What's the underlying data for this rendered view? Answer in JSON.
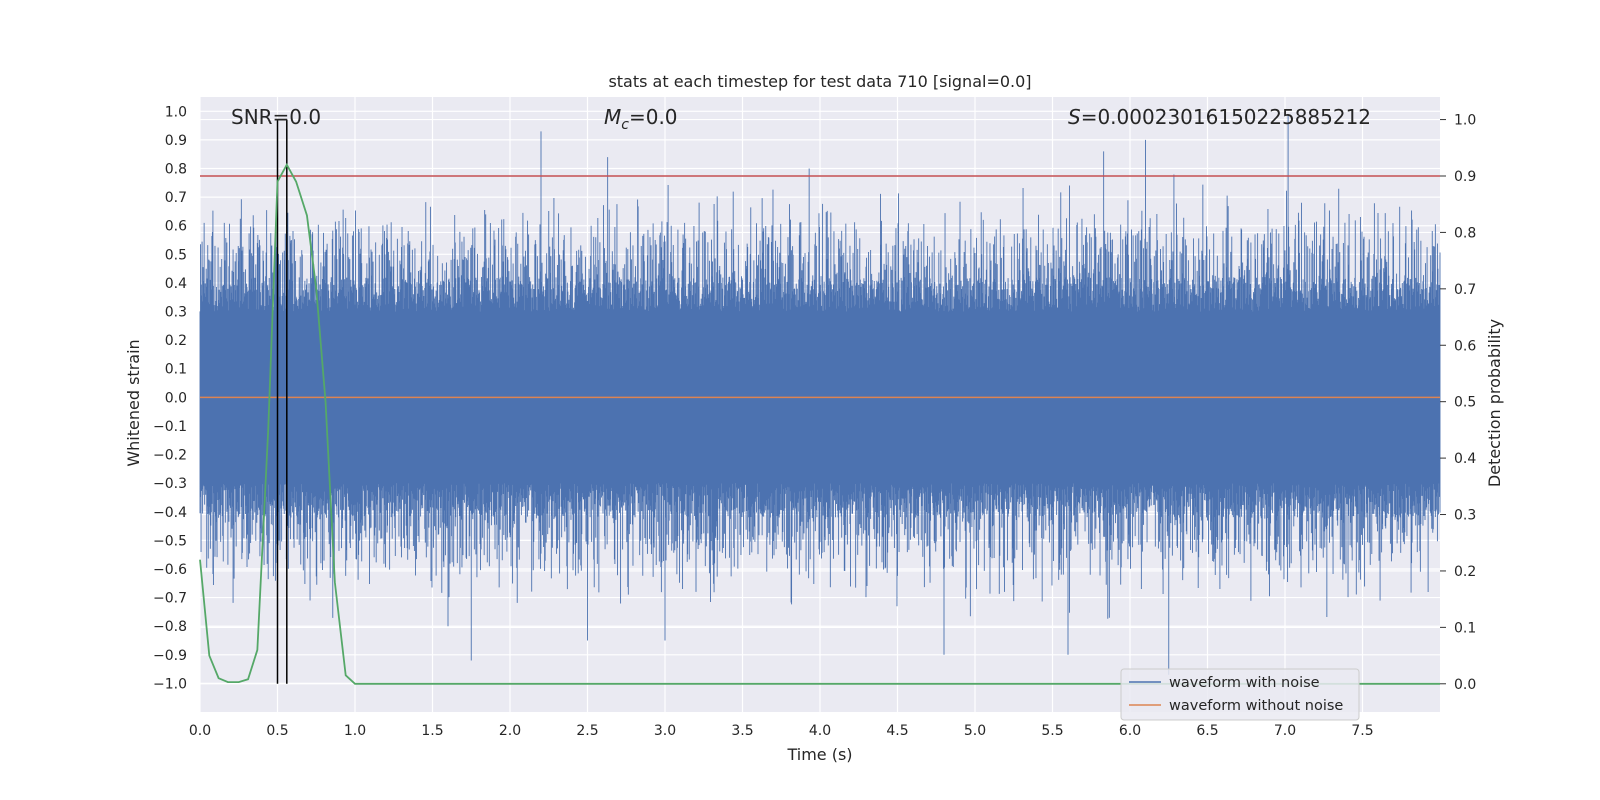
{
  "chart_data": {
    "type": "line",
    "title": "stats at each timestep for test data 710 [signal=0.0]",
    "xlabel": "Time (s)",
    "ylabel_left": "Whitened strain",
    "ylabel_right": "Detection probability",
    "xlim": [
      0.0,
      8.0
    ],
    "ylim_left": [
      -1.1,
      1.05
    ],
    "ylim_right": [
      -0.05,
      1.04
    ],
    "x_ticks": [
      "0.0",
      "0.5",
      "1.0",
      "1.5",
      "2.0",
      "2.5",
      "3.0",
      "3.5",
      "4.0",
      "4.5",
      "5.0",
      "5.5",
      "6.0",
      "6.5",
      "7.0",
      "7.5"
    ],
    "y_left_ticks": [
      "1.0",
      "0.9",
      "0.8",
      "0.7",
      "0.6",
      "0.5",
      "0.4",
      "0.3",
      "0.2",
      "0.1",
      "0.0",
      "−0.1",
      "−0.2",
      "−0.3",
      "−0.4",
      "−0.5",
      "−0.6",
      "−0.7",
      "−0.8",
      "−0.9",
      "−1.0"
    ],
    "y_right_ticks": [
      "1.0",
      "0.9",
      "0.8",
      "0.7",
      "0.6",
      "0.5",
      "0.4",
      "0.3",
      "0.2",
      "0.1",
      "0.0"
    ],
    "annotations": {
      "snr_label": "SNR=0.0",
      "mc_label": "=0.0",
      "mc_symbol": "M",
      "mc_subscript": "c",
      "s_symbol": "S",
      "s_label": "=0.00023016150225885212"
    },
    "threshold_probability": 0.9,
    "vertical_lines_time": [
      0.5,
      0.56
    ],
    "legend": [
      "waveform with noise",
      "waveform without noise"
    ],
    "series": [
      {
        "name": "waveform with noise",
        "color": "#4c72b0",
        "description": "whitened noise strain, 8 s at high sample rate",
        "notable_peaks": [
          {
            "t": 2.2,
            "v": 0.93
          },
          {
            "t": 2.63,
            "v": 0.84
          },
          {
            "t": 3.93,
            "v": 0.8
          },
          {
            "t": 5.83,
            "v": 0.86
          },
          {
            "t": 6.1,
            "v": 0.9
          },
          {
            "t": 7.02,
            "v": 0.99
          },
          {
            "t": 1.75,
            "v": -0.92
          },
          {
            "t": 5.6,
            "v": -0.9
          },
          {
            "t": 6.25,
            "v": -0.97
          },
          {
            "t": 4.8,
            "v": -0.9
          },
          {
            "t": 3.0,
            "v": -0.85
          },
          {
            "t": 2.5,
            "v": -0.85
          }
        ]
      },
      {
        "name": "waveform without noise",
        "color": "#dd8452",
        "values_constant": 0.0
      },
      {
        "name": "detection probability",
        "color": "#55a868",
        "x": [
          0.0,
          0.06,
          0.12,
          0.18,
          0.25,
          0.31,
          0.37,
          0.44,
          0.5,
          0.56,
          0.62,
          0.69,
          0.75,
          0.81,
          0.87,
          0.94,
          1.0,
          8.0
        ],
        "values": [
          0.22,
          0.05,
          0.01,
          0.003,
          0.003,
          0.008,
          0.06,
          0.45,
          0.89,
          0.92,
          0.89,
          0.83,
          0.7,
          0.5,
          0.18,
          0.015,
          0.0,
          0.0
        ]
      }
    ],
    "colors": {
      "background": "#eaeaf2",
      "grid": "#ffffff",
      "threshold": "#c44e52",
      "vlines": "#000000"
    }
  }
}
